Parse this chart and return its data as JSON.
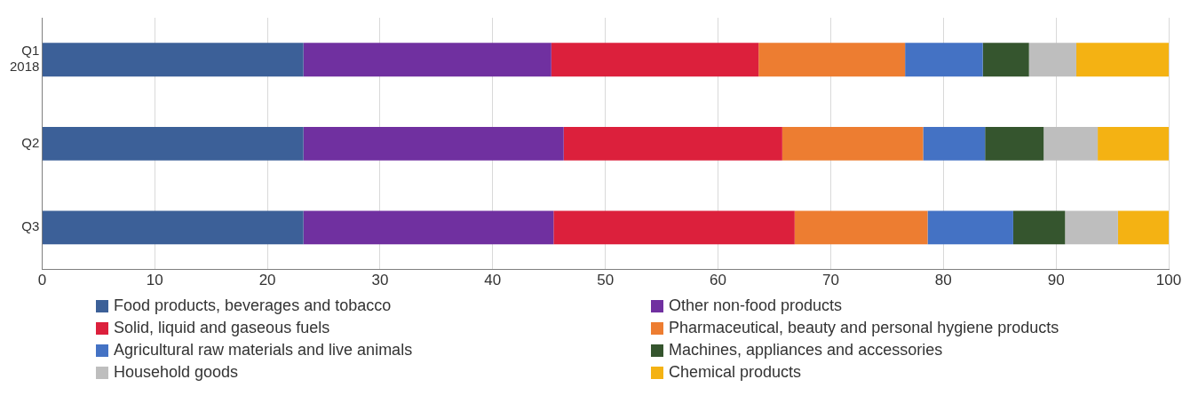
{
  "chart_data": {
    "type": "bar",
    "orientation": "horizontal",
    "stacked": true,
    "categories": [
      "Q1 2018",
      "Q2",
      "Q3"
    ],
    "xlim": [
      0,
      100
    ],
    "xticks": [
      0,
      10,
      20,
      30,
      40,
      50,
      60,
      70,
      80,
      90,
      100
    ],
    "grid": "x",
    "legend": "bottom",
    "series": [
      {
        "name": "Food products, beverages and tobacco",
        "color": "#3c6098",
        "values": [
          23.2,
          23.2,
          23.2
        ]
      },
      {
        "name": "Other non-food products",
        "color": "#7030a0",
        "values": [
          22.0,
          23.1,
          22.2
        ]
      },
      {
        "name": "Solid, liquid and gaseous fuels",
        "color": "#dc203c",
        "values": [
          18.4,
          19.4,
          21.4
        ]
      },
      {
        "name": "Pharmaceutical, beauty and personal hygiene products",
        "color": "#ed7d31",
        "values": [
          13.0,
          12.5,
          11.8
        ]
      },
      {
        "name": "Agricultural raw materials and live animals",
        "color": "#4472c4",
        "values": [
          6.9,
          5.5,
          7.6
        ]
      },
      {
        "name": "Machines, appliances and accessories",
        "color": "#35552e",
        "values": [
          4.1,
          5.2,
          4.6
        ]
      },
      {
        "name": "Household goods",
        "color": "#bebebe",
        "values": [
          4.2,
          4.8,
          4.7
        ]
      },
      {
        "name": "Chemical products",
        "color": "#f4b213",
        "values": [
          8.2,
          6.3,
          4.5
        ]
      }
    ]
  }
}
